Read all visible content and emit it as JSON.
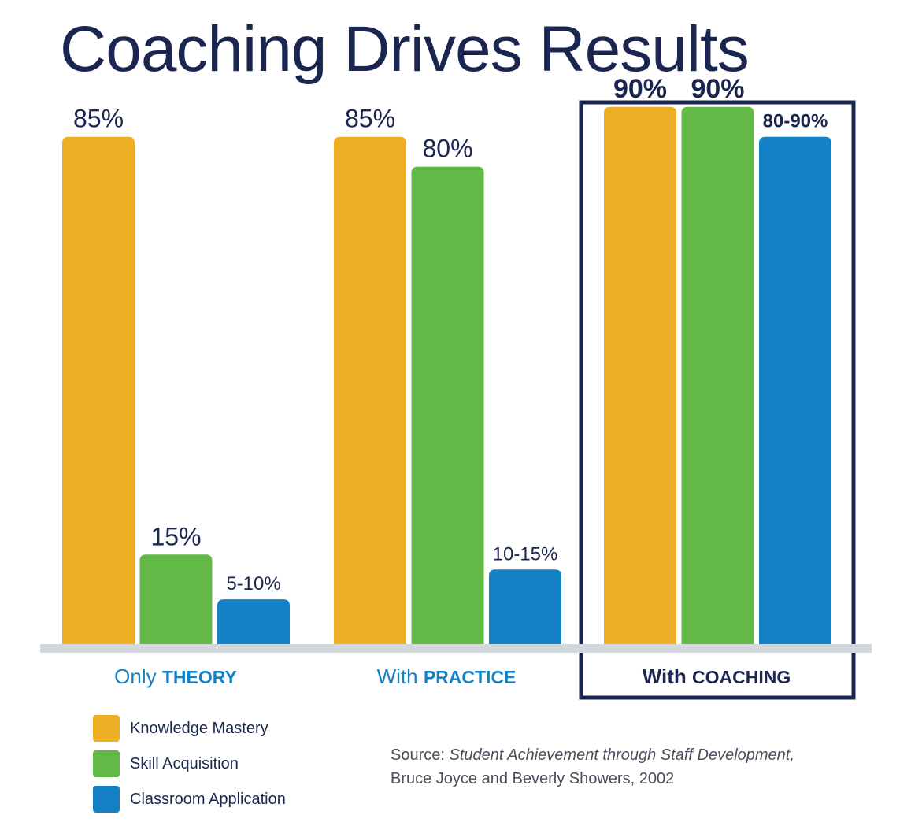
{
  "title": "Coaching Drives Results",
  "colors": {
    "knowledge": "#ecae23",
    "skill": "#62b946",
    "classroom": "#1480c6",
    "navy": "#1b2650",
    "group_label": "#1480c6",
    "baseline": "#d3d8dd"
  },
  "chart_data": {
    "type": "bar",
    "title": "Coaching Drives Results",
    "categories": [
      "Only THEORY",
      "With PRACTICE",
      "With COACHING"
    ],
    "category_labels": [
      {
        "prefix": "Only",
        "emphasis": "THEORY"
      },
      {
        "prefix": "With",
        "emphasis": "PRACTICE"
      },
      {
        "prefix": "With",
        "emphasis": "COACHING"
      }
    ],
    "highlighted_category": "With COACHING",
    "ylim": [
      0,
      100
    ],
    "grid": false,
    "series": [
      {
        "name": "Knowledge Mastery",
        "values": [
          85,
          85,
          90
        ],
        "labels": [
          "85%",
          "85%",
          "90%"
        ]
      },
      {
        "name": "Skill Acquisition",
        "values": [
          15,
          80,
          90
        ],
        "labels": [
          "15%",
          "80%",
          "90%"
        ]
      },
      {
        "name": "Classroom Application",
        "values": [
          7.5,
          12.5,
          85
        ],
        "labels": [
          "5-10%",
          "10-15%",
          "80-90%"
        ]
      }
    ]
  },
  "legend": {
    "placement": "bottom-left",
    "items": [
      {
        "label": "Knowledge Mastery",
        "color_key": "knowledge"
      },
      {
        "label": "Skill Acquisition",
        "color_key": "skill"
      },
      {
        "label": "Classroom Application",
        "color_key": "classroom"
      }
    ]
  },
  "source": {
    "prefix": "Source:",
    "title": "Student Achievement through Staff Development,",
    "authors": "Bruce Joyce and Beverly Showers, 2002"
  }
}
